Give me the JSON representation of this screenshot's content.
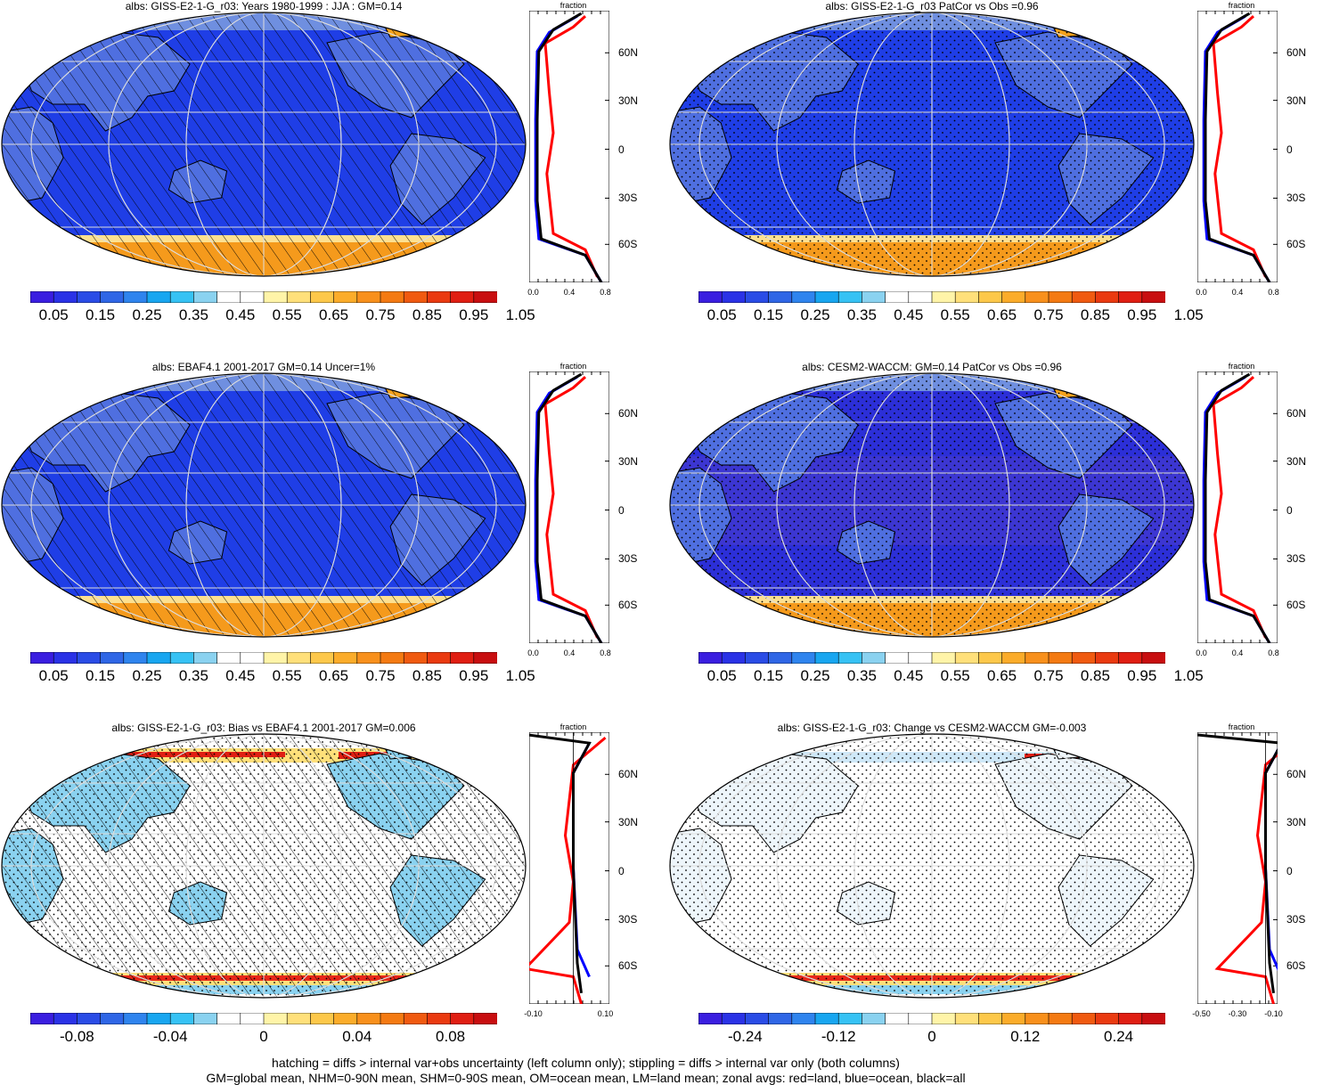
{
  "panels": [
    {
      "title": "albs: GISS-E2-1-G_r03: Years 1980-1999 : JJA : GM=0.14",
      "type": "abs",
      "hatch": true,
      "stipple": false,
      "cbar_labels": [
        "0.05",
        "0.15",
        "0.25",
        "0.35",
        "0.45",
        "0.55",
        "0.65",
        "0.75",
        "0.85",
        "0.95",
        "1.05"
      ],
      "zonal_ticks": [
        "0.0",
        "0.4",
        "0.8"
      ]
    },
    {
      "title": "albs: GISS-E2-1-G_r03 PatCor vs Obs =0.96",
      "type": "abs",
      "hatch": false,
      "stipple": true,
      "cbar_labels": [
        "0.05",
        "0.15",
        "0.25",
        "0.35",
        "0.45",
        "0.55",
        "0.65",
        "0.75",
        "0.85",
        "0.95",
        "1.05"
      ],
      "zonal_ticks": [
        "0.0",
        "0.4",
        "0.8"
      ]
    },
    {
      "title": "albs: EBAF4.1 2001-2017 GM=0.14 Uncer=1%",
      "type": "abs",
      "hatch": true,
      "stipple": false,
      "cbar_labels": [
        "0.05",
        "0.15",
        "0.25",
        "0.35",
        "0.45",
        "0.55",
        "0.65",
        "0.75",
        "0.85",
        "0.95",
        "1.05"
      ],
      "zonal_ticks": [
        "0.0",
        "0.4",
        "0.8"
      ]
    },
    {
      "title": "albs: CESM2-WACCM: GM=0.14 PatCor vs Obs =0.96",
      "type": "abs",
      "hatch": false,
      "stipple": true,
      "cbar_labels": [
        "0.05",
        "0.15",
        "0.25",
        "0.35",
        "0.45",
        "0.55",
        "0.65",
        "0.75",
        "0.85",
        "0.95",
        "1.05"
      ],
      "zonal_ticks": [
        "0.0",
        "0.4",
        "0.8"
      ]
    },
    {
      "title": "albs: GISS-E2-1-G_r03: Bias vs EBAF4.1 2001-2017 GM=0.006",
      "type": "diff",
      "hatch": true,
      "stipple": true,
      "cbar_labels": [
        "-0.08",
        "-0.04",
        "0",
        "0.04",
        "0.08"
      ],
      "zonal_ticks": [
        "-0.10",
        "0.10"
      ]
    },
    {
      "title": "albs: GISS-E2-1-G_r03: Change vs CESM2-WACCM GM=-0.003",
      "type": "diff",
      "hatch": false,
      "stipple": true,
      "cbar_labels": [
        "-0.24",
        "-0.12",
        "0",
        "0.12",
        "0.24"
      ],
      "zonal_ticks": [
        "-0.50",
        "-0.30",
        "-0.10"
      ]
    }
  ],
  "lat_labels": [
    "60N",
    "30N",
    "0",
    "30S",
    "60S"
  ],
  "zonal_axis_label": "fraction",
  "abs_colors": [
    "#3a1ee0",
    "#2a32e6",
    "#2a4ce6",
    "#2f66e6",
    "#2f84ee",
    "#18a6f0",
    "#36c2f4",
    "#8ad2f0",
    "#ffffff",
    "#ffffff",
    "#fff4a8",
    "#ffe07a",
    "#fdc84a",
    "#fbac2a",
    "#f8901c",
    "#f47a12",
    "#f05a10",
    "#ea3a10",
    "#e01e12",
    "#c80e10"
  ],
  "diff_colors": [
    "#3a1ee0",
    "#2a32e6",
    "#2a4ce6",
    "#2f66e6",
    "#2f84ee",
    "#18a6f0",
    "#36c2f4",
    "#8ad2f0",
    "#ffffff",
    "#ffffff",
    "#fff4a8",
    "#ffe07a",
    "#fdc84a",
    "#fbac2a",
    "#f8901c",
    "#f47a12",
    "#f05a10",
    "#ea3a10",
    "#e01e12",
    "#c80e10"
  ],
  "footer_line1": "hatching = diffs > internal var+obs uncertainty (left column only); stippling = diffs > internal var only (both columns)",
  "footer_line2": "GM=global mean, NHM=0-90N mean, SHM=0-90S mean, OM=ocean mean, LM=land mean; zonal avgs: red=land, blue=ocean, black=all",
  "legend_colors": {
    "land": "#ff0000",
    "ocean": "#0000ff",
    "all": "#000000"
  }
}
